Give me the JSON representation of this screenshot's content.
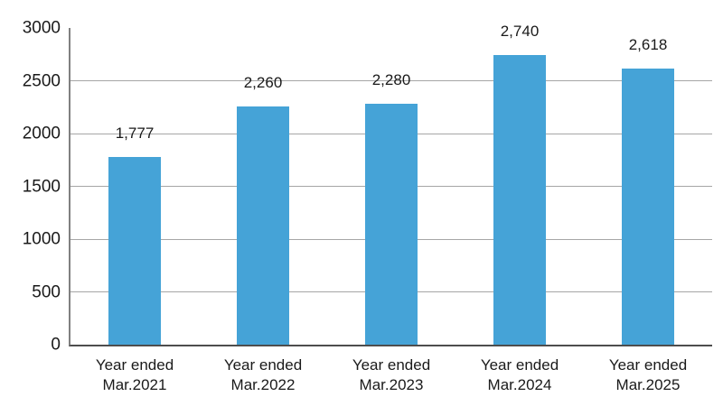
{
  "chart_data": {
    "type": "bar",
    "title": "",
    "xlabel": "",
    "ylabel": "",
    "categories": [
      "Year ended Mar.2021",
      "Year ended Mar.2022",
      "Year ended Mar.2023",
      "Year ended Mar.2024",
      "Year ended Mar.2025"
    ],
    "category_lines": [
      [
        "Year ended",
        "Mar.2021"
      ],
      [
        "Year ended",
        "Mar.2022"
      ],
      [
        "Year ended",
        "Mar.2023"
      ],
      [
        "Year ended",
        "Mar.2024"
      ],
      [
        "Year ended",
        "Mar.2025"
      ]
    ],
    "values": [
      1777,
      2260,
      2280,
      2740,
      2618
    ],
    "value_labels": [
      "1,777",
      "2,260",
      "2,280",
      "2,740",
      "2,618"
    ],
    "ylim": [
      0,
      3000
    ],
    "ytick_values": [
      0,
      500,
      1000,
      1500,
      2000,
      2500,
      3000
    ],
    "ytick_labels": [
      "0",
      "500",
      "1000",
      "1500",
      "2000",
      "2500",
      "3000"
    ],
    "gridline_values": [
      500,
      1000,
      1500,
      2000,
      2500
    ],
    "grid": "horizontal-only",
    "legend": "none",
    "colors": {
      "bar": "#45a3d7",
      "gridline": "#a6a6a6",
      "y_axis": "#808080",
      "x_axis": "#4d4d4d",
      "text": "#1a1a1a",
      "background": "#ffffff"
    }
  }
}
